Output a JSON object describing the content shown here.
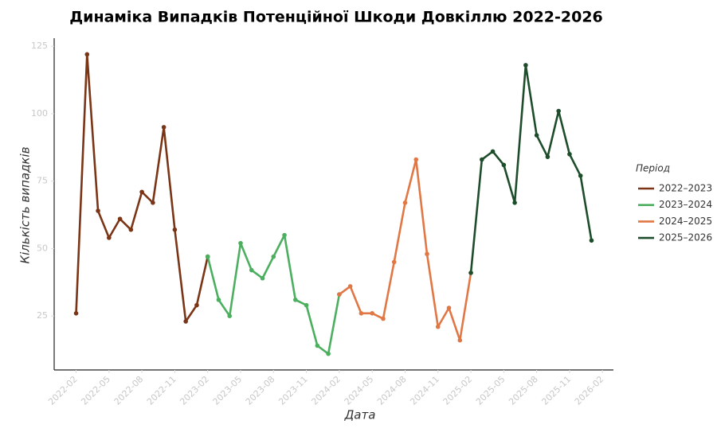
{
  "chart_data": {
    "type": "line",
    "title": "Динаміка Випадків Потенційної Шкоди Довкіллю 2022-2026",
    "x_label": "Дата",
    "y_label": "Кількість випадків",
    "legend_title": "Період",
    "legend_position": "right",
    "x": [
      "2022-02",
      "2022-03",
      "2022-04",
      "2022-05",
      "2022-06",
      "2022-07",
      "2022-08",
      "2022-09",
      "2022-10",
      "2022-11",
      "2022-12",
      "2023-01",
      "2023-02",
      "2023-03",
      "2023-04",
      "2023-05",
      "2023-06",
      "2023-07",
      "2023-08",
      "2023-09",
      "2023-10",
      "2023-11",
      "2023-12",
      "2024-01",
      "2024-02",
      "2024-03",
      "2024-04",
      "2024-05",
      "2024-06",
      "2024-07",
      "2024-08",
      "2024-09",
      "2024-10",
      "2024-11",
      "2024-12",
      "2025-01",
      "2025-02",
      "2025-03",
      "2025-04",
      "2025-05",
      "2025-06",
      "2025-07",
      "2025-08",
      "2025-09",
      "2025-10",
      "2025-11",
      "2025-12",
      "2026-01"
    ],
    "series": [
      {
        "name": "2022–2023",
        "color": "#7a3516",
        "values": [
          26,
          122,
          64,
          54,
          61,
          57,
          71,
          67,
          95,
          57,
          23,
          29,
          47,
          null,
          null,
          null,
          null,
          null,
          null,
          null,
          null,
          null,
          null,
          null,
          null,
          null,
          null,
          null,
          null,
          null,
          null,
          null,
          null,
          null,
          null,
          null,
          null,
          null,
          null,
          null,
          null,
          null,
          null,
          null,
          null,
          null,
          null,
          null
        ]
      },
      {
        "name": "2023–2024",
        "color": "#4caf5f",
        "values": [
          null,
          null,
          null,
          null,
          null,
          null,
          null,
          null,
          null,
          null,
          null,
          null,
          47,
          31,
          25,
          52,
          42,
          39,
          47,
          55,
          31,
          29,
          14,
          11,
          33,
          null,
          null,
          null,
          null,
          null,
          null,
          null,
          null,
          null,
          null,
          null,
          null,
          null,
          null,
          null,
          null,
          null,
          null,
          null,
          null,
          null,
          null,
          null
        ]
      },
      {
        "name": "2024–2025",
        "color": "#e07745",
        "values": [
          null,
          null,
          null,
          null,
          null,
          null,
          null,
          null,
          null,
          null,
          null,
          null,
          null,
          null,
          null,
          null,
          null,
          null,
          null,
          null,
          null,
          null,
          null,
          null,
          33,
          36,
          26,
          26,
          24,
          45,
          67,
          83,
          48,
          21,
          28,
          16,
          41,
          null,
          null,
          null,
          null,
          null,
          null,
          null,
          null,
          null,
          null,
          null
        ]
      },
      {
        "name": "2025–2026",
        "color": "#1d4d2b",
        "values": [
          null,
          null,
          null,
          null,
          null,
          null,
          null,
          null,
          null,
          null,
          null,
          null,
          null,
          null,
          null,
          null,
          null,
          null,
          null,
          null,
          null,
          null,
          null,
          null,
          null,
          null,
          null,
          null,
          null,
          null,
          null,
          null,
          null,
          null,
          null,
          null,
          41,
          83,
          86,
          81,
          67,
          118,
          92,
          84,
          101,
          85,
          77,
          53
        ]
      }
    ],
    "xlim": [
      "2021-12",
      "2026-03"
    ],
    "xticks": [
      "2022-02",
      "2022-05",
      "2022-08",
      "2022-11",
      "2023-02",
      "2023-05",
      "2023-08",
      "2023-11",
      "2024-02",
      "2024-05",
      "2024-08",
      "2024-11",
      "2025-02",
      "2025-05",
      "2025-08",
      "2025-11",
      "2026-02"
    ],
    "ylim": [
      5,
      128
    ],
    "yticks": [
      25,
      50,
      75,
      100,
      125
    ],
    "grid": false
  }
}
